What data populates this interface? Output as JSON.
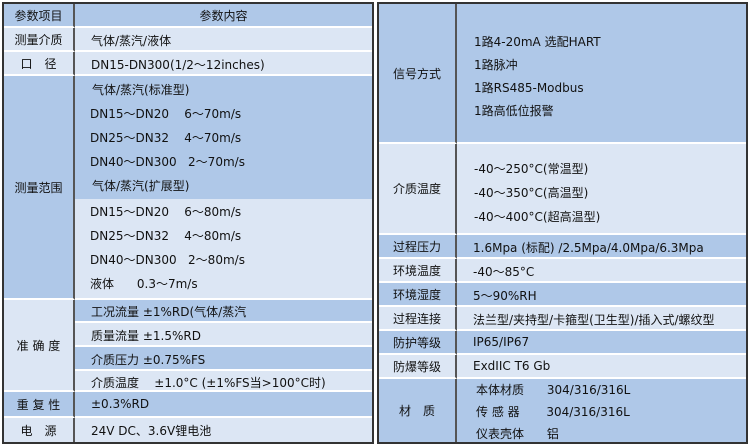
{
  "left": {
    "header": {
      "item": "参数项目",
      "content": "参数内容"
    },
    "medium": {
      "label": "测量介质",
      "value": "气体/蒸汽/液体"
    },
    "diameter": {
      "label": "口　径",
      "value": "DN15-DN300(1/2～12inches)"
    },
    "range": {
      "label": "测量范围",
      "lines": [
        "气体/蒸汽(标准型)",
        "DN15～DN20    6～70m/s",
        "DN25～DN32    4～70m/s",
        "DN40～DN300   2～70m/s",
        "气体/蒸汽(扩展型)",
        "DN15～DN20    6～80m/s",
        "DN25～DN32    4～80m/s",
        "DN40～DN300   2～80m/s",
        "液体      0.3～7m/s"
      ]
    },
    "accuracy": {
      "label": "准 确 度",
      "lines": [
        "工况流量    ±1%RD(气体/蒸汽",
        "质量流量    ±1.5%RD",
        "介质压力    ±0.75%FS",
        "介质温度    ±1.0°C (±1%FS当>100°C时)"
      ]
    },
    "repeat": {
      "label": "重 复 性",
      "value": "±0.3%RD"
    },
    "power": {
      "label": "电　源",
      "value": "24V DC、3.6V锂电池"
    }
  },
  "right": {
    "signal": {
      "label": "信号方式",
      "lines": [
        "1路4-20mA 选配HART",
        "1路脉冲",
        "1路RS485-Modbus",
        "1路高低位报警"
      ]
    },
    "mtemp": {
      "label": "介质温度",
      "lines": [
        "-40～250°C(常温型)",
        "-40～350°C(高温型)",
        "-40～400°C(超高温型)"
      ]
    },
    "rows": [
      {
        "label": "过程压力",
        "value": "1.6Mpa (标配) /2.5Mpa/4.0Mpa/6.3Mpa"
      },
      {
        "label": "环境温度",
        "value": "-40～85°C"
      },
      {
        "label": "环境湿度",
        "value": "5～90%RH"
      },
      {
        "label": "过程连接",
        "value": "法兰型/夹持型/卡箍型(卫生型)/插入式/螺纹型"
      },
      {
        "label": "防护等级",
        "value": "IP65/IP67"
      },
      {
        "label": "防爆等级",
        "value": "ExdIIC T6 Gb"
      }
    ],
    "material": {
      "label": "材　质",
      "lines": [
        "本体材质      304/316/316L",
        "传 感 器       304/316/316L",
        "仪表壳体      铝"
      ]
    }
  },
  "colors": {
    "dark_band": "#afc8e8",
    "light_band": "#dce6f4"
  }
}
